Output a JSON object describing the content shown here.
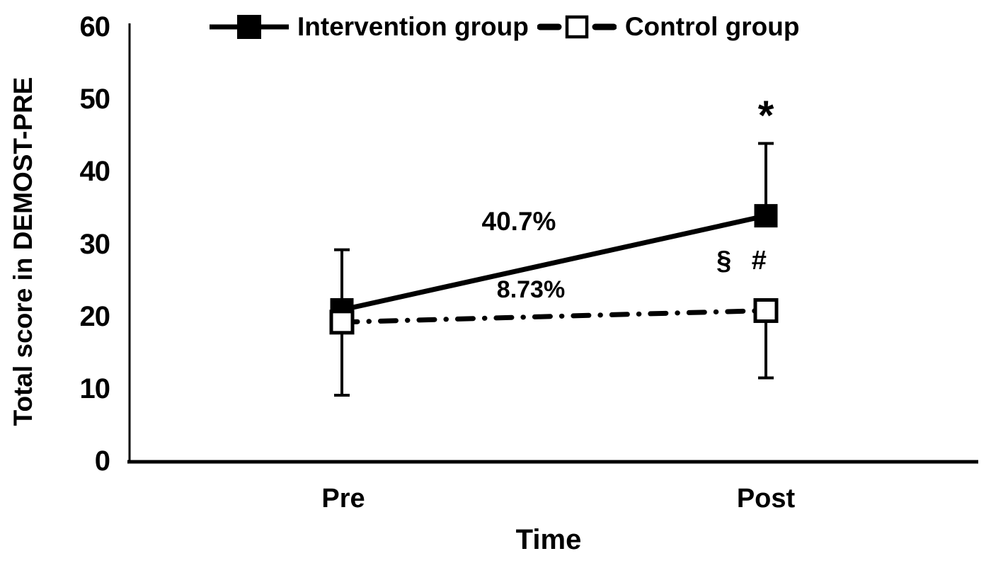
{
  "figure": {
    "background": "#ffffff",
    "ink_color": "#000000"
  },
  "chart_data": {
    "type": "line",
    "title": "",
    "xlabel": "Time",
    "ylabel": "Total score in DEMOST-PRE",
    "categories": [
      "Pre",
      "Post"
    ],
    "ylim": [
      0,
      60
    ],
    "yticks": [
      60,
      50,
      40,
      30,
      20,
      10,
      0
    ],
    "grid": false,
    "legend_position": "top",
    "series": [
      {
        "name": "Intervention group",
        "values": [
          21,
          34
        ],
        "marker": "filled-square",
        "line_style": "solid"
      },
      {
        "name": "Control group",
        "values": [
          19.3,
          20.9
        ],
        "marker": "open-square",
        "line_style": "dash-dot"
      }
    ],
    "error_bars": [
      {
        "category": "Pre",
        "low": 9.2,
        "high": 29.3
      },
      {
        "category": "Post",
        "low": 34,
        "high": 44
      },
      {
        "category": "Post",
        "low": 11.6,
        "high": 20.9
      }
    ],
    "annotations": {
      "pct_intervention": "40.7%",
      "pct_control": "8.73%",
      "sig_post_intervention": "*",
      "sig_post_control": "§ #"
    }
  }
}
